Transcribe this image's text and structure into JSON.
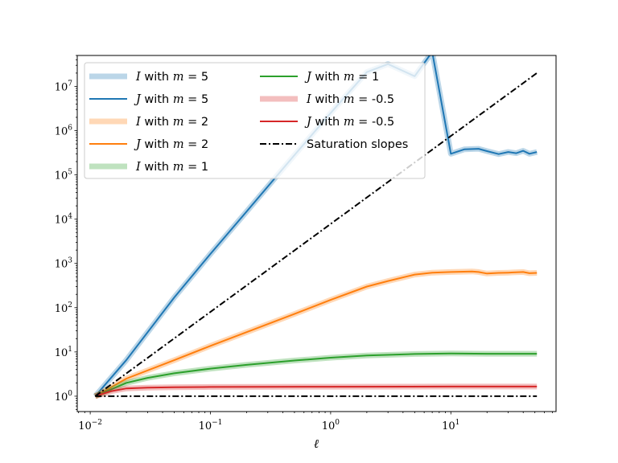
{
  "chart_data": {
    "type": "line",
    "xlabel": "ℓ",
    "ylabel": "",
    "xscale": "log",
    "yscale": "log",
    "xlim": [
      0.0078,
      75
    ],
    "ylim": [
      0.45,
      50000000
    ],
    "grid": false,
    "legend_position": "top-left",
    "legend_columns": 2,
    "x_ticks": [
      {
        "base": "10",
        "exp": "−2",
        "value": 0.01
      },
      {
        "base": "10",
        "exp": "−1",
        "value": 0.1
      },
      {
        "base": "10",
        "exp": "0",
        "value": 1
      },
      {
        "base": "10",
        "exp": "1",
        "value": 10
      }
    ],
    "y_ticks": [
      {
        "base": "10",
        "exp": "0",
        "value": 1
      },
      {
        "base": "10",
        "exp": "1",
        "value": 10
      },
      {
        "base": "10",
        "exp": "2",
        "value": 100
      },
      {
        "base": "10",
        "exp": "3",
        "value": 1000
      },
      {
        "base": "10",
        "exp": "4",
        "value": 10000
      },
      {
        "base": "10",
        "exp": "5",
        "value": 100000
      },
      {
        "base": "10",
        "exp": "6",
        "value": 1000000
      },
      {
        "base": "10",
        "exp": "7",
        "value": 10000000
      }
    ],
    "series": [
      {
        "label_var": "I",
        "label_mid": " with ",
        "label_m": "m",
        "label_eq": " = ",
        "label_val": "5",
        "color": "#1f77b4",
        "alpha": 0.3,
        "width": 7,
        "dash": "",
        "x": [
          0.011,
          0.02,
          0.05,
          0.1,
          0.2,
          0.5,
          1,
          2,
          3,
          5,
          7,
          10,
          13,
          17,
          20,
          25,
          30,
          35,
          40,
          45,
          52
        ],
        "y": [
          1,
          6.6,
          170,
          1640,
          14900,
          280000,
          2500000,
          21000000,
          32000000,
          17000000,
          60000000,
          300000,
          380000,
          390000,
          345000,
          295000,
          330000,
          310000,
          350000,
          300000,
          330000
        ]
      },
      {
        "label_var": "J",
        "label_mid": " with ",
        "label_m": "m",
        "label_eq": " = ",
        "label_val": "5",
        "color": "#1f77b4",
        "alpha": 1,
        "width": 2,
        "dash": "",
        "x": [
          0.011,
          0.02,
          0.05,
          0.1,
          0.2,
          0.5,
          1,
          2,
          3,
          5,
          7,
          10,
          13,
          17,
          20,
          25,
          30,
          35,
          40,
          45,
          52
        ],
        "y": [
          1,
          6.6,
          170,
          1640,
          14900,
          280000,
          2500000,
          21000000,
          32000000,
          17000000,
          60000000,
          300000,
          380000,
          390000,
          345000,
          295000,
          330000,
          310000,
          350000,
          300000,
          330000
        ]
      },
      {
        "label_var": "I",
        "label_mid": " with ",
        "label_m": "m",
        "label_eq": " = ",
        "label_val": "2",
        "color": "#ff7f0e",
        "alpha": 0.3,
        "width": 7,
        "dash": "",
        "x": [
          0.011,
          0.02,
          0.05,
          0.1,
          0.2,
          0.5,
          1,
          2,
          3,
          5,
          7,
          10,
          15,
          17,
          20,
          25,
          30,
          40,
          45,
          52
        ],
        "y": [
          1,
          2.5,
          6.5,
          13.7,
          28,
          72,
          150,
          300,
          400,
          560,
          620,
          640,
          660,
          640,
          590,
          610,
          620,
          640,
          600,
          610
        ]
      },
      {
        "label_var": "J",
        "label_mid": " with ",
        "label_m": "m",
        "label_eq": " = ",
        "label_val": "2",
        "color": "#ff7f0e",
        "alpha": 1,
        "width": 2,
        "dash": "",
        "x": [
          0.011,
          0.02,
          0.05,
          0.1,
          0.2,
          0.5,
          1,
          2,
          3,
          5,
          7,
          10,
          15,
          17,
          20,
          25,
          30,
          40,
          45,
          52
        ],
        "y": [
          1,
          2.5,
          6.5,
          13.7,
          28,
          72,
          150,
          300,
          400,
          560,
          620,
          640,
          660,
          640,
          590,
          610,
          620,
          640,
          600,
          610
        ]
      },
      {
        "label_var": "I",
        "label_mid": " with ",
        "label_m": "m",
        "label_eq": " = ",
        "label_val": "1",
        "color": "#2ca02c",
        "alpha": 0.3,
        "width": 7,
        "dash": "",
        "x": [
          0.011,
          0.02,
          0.03,
          0.05,
          0.1,
          0.2,
          0.5,
          1,
          2,
          5,
          10,
          20,
          52
        ],
        "y": [
          1,
          2,
          2.6,
          3.3,
          4.2,
          5.1,
          6.4,
          7.4,
          8.3,
          9,
          9.2,
          9.1,
          9.1
        ]
      },
      {
        "label_var": "J",
        "label_mid": " with ",
        "label_m": "m",
        "label_eq": " = ",
        "label_val": "1",
        "color": "#2ca02c",
        "alpha": 1,
        "width": 2,
        "dash": "",
        "x": [
          0.011,
          0.02,
          0.03,
          0.05,
          0.1,
          0.2,
          0.5,
          1,
          2,
          5,
          10,
          20,
          52
        ],
        "y": [
          1,
          2,
          2.6,
          3.3,
          4.2,
          5.1,
          6.4,
          7.4,
          8.3,
          9,
          9.2,
          9.1,
          9.1
        ]
      },
      {
        "label_var": "I",
        "label_mid": " with ",
        "label_m": "m",
        "label_eq": " = ",
        "label_val": "-0.5",
        "color": "#d62728",
        "alpha": 0.3,
        "width": 7,
        "dash": "",
        "x": [
          0.011,
          0.015,
          0.02,
          0.03,
          0.05,
          0.1,
          1,
          10,
          52
        ],
        "y": [
          1,
          1.3,
          1.5,
          1.56,
          1.6,
          1.62,
          1.64,
          1.65,
          1.65
        ]
      },
      {
        "label_var": "J",
        "label_mid": " with ",
        "label_m": "m",
        "label_eq": " = ",
        "label_val": "-0.5",
        "color": "#d62728",
        "alpha": 1,
        "width": 2,
        "dash": "",
        "x": [
          0.011,
          0.015,
          0.02,
          0.03,
          0.05,
          0.1,
          1,
          10,
          52
        ],
        "y": [
          1,
          1.3,
          1.5,
          1.56,
          1.6,
          1.62,
          1.64,
          1.65,
          1.65
        ]
      },
      {
        "label_text": "Saturation slopes",
        "color": "#000000",
        "alpha": 1,
        "width": 2,
        "dash": "8 3 2 3",
        "x": [
          0.011,
          52
        ],
        "y": [
          1,
          20000000
        ]
      },
      {
        "label_text": "",
        "color": "#000000",
        "alpha": 1,
        "width": 2,
        "dash": "8 3 2 3",
        "x": [
          0.011,
          52
        ],
        "y": [
          1,
          1
        ]
      }
    ]
  }
}
